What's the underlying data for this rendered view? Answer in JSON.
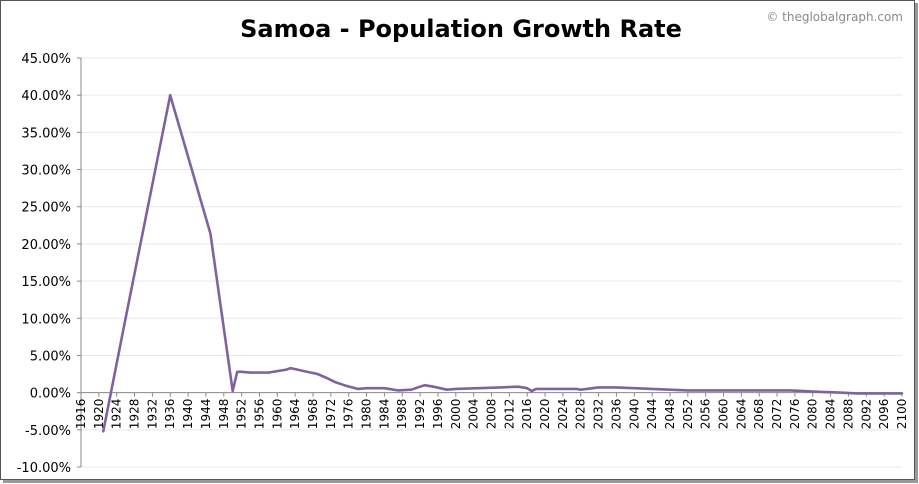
{
  "chart_data": {
    "type": "line",
    "title": "Samoa - Population Growth Rate",
    "credit": "© theglobalgraph.com",
    "xlabel": "",
    "ylabel": "",
    "xlim": [
      1916,
      2100
    ],
    "ylim": [
      -10,
      45
    ],
    "grid": true,
    "colors": {
      "line": "#7f63a1",
      "grid": "#e8e8e8",
      "axis": "#888888"
    },
    "y_ticks": [
      "45.00%",
      "40.00%",
      "35.00%",
      "30.00%",
      "25.00%",
      "20.00%",
      "15.00%",
      "10.00%",
      "5.00%",
      "0.00%",
      "-5.00%",
      "-10.00%"
    ],
    "x_ticks": [
      "1916",
      "1920",
      "1924",
      "1928",
      "1932",
      "1936",
      "1940",
      "1944",
      "1948",
      "1952",
      "1956",
      "1960",
      "1964",
      "1968",
      "1972",
      "1976",
      "1980",
      "1984",
      "1988",
      "1992",
      "1996",
      "2000",
      "2004",
      "2008",
      "2012",
      "2016",
      "2020",
      "2024",
      "2028",
      "2032",
      "2036",
      "2040",
      "2044",
      "2048",
      "2052",
      "2056",
      "2060",
      "2064",
      "2068",
      "2072",
      "2076",
      "2080",
      "2084",
      "2088",
      "2092",
      "2096",
      "2100"
    ],
    "series": [
      {
        "x": [
          1921,
          1926,
          1936,
          1945,
          1950,
          1951,
          1952,
          1954,
          1958,
          1962,
          1963,
          1966,
          1969,
          1971,
          1973,
          1975,
          1978,
          1980,
          1984,
          1987,
          1990,
          1993,
          1995,
          1998,
          2000,
          2005,
          2010,
          2014,
          2016,
          2017,
          2018,
          2020,
          2027,
          2028,
          2032,
          2036,
          2040,
          2044,
          2048,
          2052,
          2056,
          2060,
          2064,
          2068,
          2072,
          2075,
          2078,
          2082,
          2086,
          2090,
          2094,
          2098,
          2100
        ],
        "y": [
          -5.2,
          10.0,
          40.0,
          21.4,
          0.2,
          2.8,
          2.8,
          2.7,
          2.7,
          3.1,
          3.3,
          2.9,
          2.5,
          2.0,
          1.4,
          1.0,
          0.5,
          0.6,
          0.6,
          0.3,
          0.4,
          1.0,
          0.8,
          0.4,
          0.5,
          0.6,
          0.7,
          0.8,
          0.6,
          0.2,
          0.5,
          0.5,
          0.5,
          0.4,
          0.7,
          0.7,
          0.6,
          0.5,
          0.4,
          0.3,
          0.3,
          0.3,
          0.3,
          0.3,
          0.3,
          0.3,
          0.2,
          0.1,
          0.0,
          -0.1,
          -0.1,
          -0.1,
          -0.1
        ]
      }
    ]
  }
}
